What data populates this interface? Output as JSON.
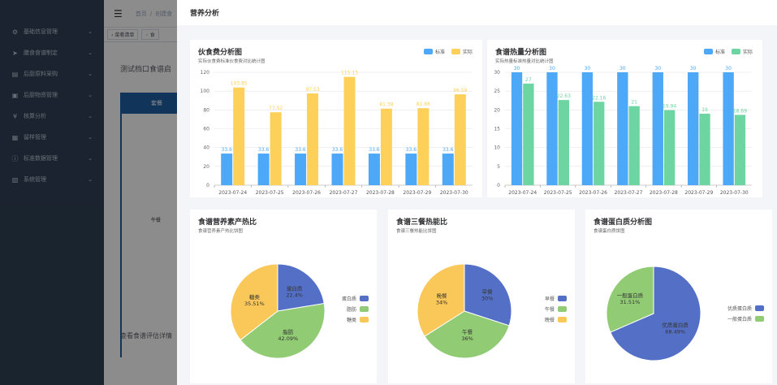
{
  "sidebar": {
    "items": [
      {
        "label": "基础信息管理",
        "icon": "gear-icon"
      },
      {
        "label": "膳食食谱制定",
        "icon": "send-icon"
      },
      {
        "label": "后厨原料采购",
        "icon": "cart-icon"
      },
      {
        "label": "后厨物资管理",
        "icon": "box-icon"
      },
      {
        "label": "核算分析",
        "icon": "yen-icon"
      },
      {
        "label": "留样管理",
        "icon": "sample-icon"
      },
      {
        "label": "标准数据管理",
        "icon": "info-icon"
      },
      {
        "label": "系统管理",
        "icon": "system-icon"
      }
    ]
  },
  "topbar": {
    "home": "首页",
    "crumb": "创建食"
  },
  "tags": [
    "菜肴清单",
    "食"
  ],
  "main": {
    "heading": "测试档口食谱启",
    "table_head": "套餐",
    "lunch": "午餐",
    "view_link": "查看食谱评估详情"
  },
  "dialog": {
    "title": "营养分析"
  },
  "cost_chart": {
    "title": "伙食费分析图",
    "subtitle": "实际伙食费标准伙食费对比统计图",
    "legend": [
      "标准",
      "实际"
    ],
    "colors": [
      "#4da8f7",
      "#fdd05a"
    ]
  },
  "heat_chart": {
    "title": "食谱热量分析图",
    "subtitle": "实际热量标准热量对比统计图",
    "legend": [
      "标准",
      "实际"
    ],
    "colors": [
      "#4da8f7",
      "#6cd5a1"
    ]
  },
  "pie1": {
    "title": "食谱营养素产热比",
    "subtitle": "食谱营养素产热比饼图",
    "legend": [
      "蛋白质",
      "脂肪",
      "糖类"
    ]
  },
  "pie2": {
    "title": "食谱三餐热能比",
    "subtitle": "食谱三餐热能比饼图",
    "legend": [
      "早餐",
      "午餐",
      "晚餐"
    ]
  },
  "pie3": {
    "title": "食谱蛋白质分析图",
    "subtitle": "食谱蛋白质饼图",
    "legend": [
      "优质蛋白质",
      "一般蛋白质"
    ]
  },
  "chart_data": [
    {
      "type": "bar",
      "title": "伙食费分析图",
      "categories": [
        "2023-07-24",
        "2023-07-25",
        "2023-07-26",
        "2023-07-27",
        "2023-07-28",
        "2023-07-29",
        "2023-07-30"
      ],
      "series": [
        {
          "name": "标准",
          "values": [
            33.6,
            33.6,
            33.6,
            33.6,
            33.6,
            33.6,
            33.6
          ],
          "labels": [
            "33.6",
            "33.6",
            "33.6",
            "33.6",
            "33.6",
            "33.6",
            "33.6"
          ]
        },
        {
          "name": "实际",
          "values": [
            103.85,
            77.52,
            97.53,
            115.13,
            81.38,
            81.86,
            96.59
          ],
          "labels": [
            "103.85",
            "77.52",
            "97.53",
            "115.13",
            "81.38",
            "81.86",
            "96.59"
          ]
        }
      ],
      "yticks": [
        "0",
        "20",
        "40",
        "60",
        "80",
        "100",
        "120"
      ],
      "ylim": [
        0,
        120
      ]
    },
    {
      "type": "bar",
      "title": "食谱热量分析图",
      "categories": [
        "2023-07-24",
        "2023-07-25",
        "2023-07-26",
        "2023-07-27",
        "2023-07-28",
        "2023-07-29",
        "2023-07-30"
      ],
      "series": [
        {
          "name": "标准",
          "values": [
            30,
            30,
            30,
            30,
            30,
            30,
            30
          ],
          "labels": [
            "30",
            "30",
            "30",
            "30",
            "30",
            "30",
            "30"
          ]
        },
        {
          "name": "实际",
          "values": [
            27,
            22.63,
            22.16,
            21,
            19.94,
            19,
            18.69
          ],
          "labels": [
            "27",
            "22.63",
            "22.16",
            "21",
            "19.94",
            "19",
            "18.69"
          ]
        }
      ],
      "yticks": [
        "0",
        "5",
        "10",
        "15",
        "20",
        "25",
        "30"
      ],
      "ylim": [
        0,
        30
      ]
    },
    {
      "type": "pie",
      "title": "食谱营养素产热比",
      "slices": [
        {
          "name": "蛋白质",
          "value": 22.4,
          "label": "22.4%",
          "color": "#5470c6"
        },
        {
          "name": "脂肪",
          "value": 42.09,
          "label": "42.09%",
          "color": "#91cc75"
        },
        {
          "name": "糖类",
          "value": 35.51,
          "label": "35.51%",
          "color": "#fac858"
        }
      ]
    },
    {
      "type": "pie",
      "title": "食谱三餐热能比",
      "slices": [
        {
          "name": "早餐",
          "value": 30,
          "label": "30%",
          "color": "#5470c6"
        },
        {
          "name": "午餐",
          "value": 36,
          "label": "36%",
          "color": "#91cc75"
        },
        {
          "name": "晚餐",
          "value": 34,
          "label": "34%",
          "color": "#fac858"
        }
      ]
    },
    {
      "type": "pie",
      "title": "食谱蛋白质分析图",
      "slices": [
        {
          "name": "优质蛋白质",
          "value": 68.49,
          "label": "68.49%",
          "color": "#5470c6"
        },
        {
          "name": "一般蛋白质",
          "value": 31.51,
          "label": "31.51%",
          "color": "#91cc75"
        }
      ]
    }
  ]
}
